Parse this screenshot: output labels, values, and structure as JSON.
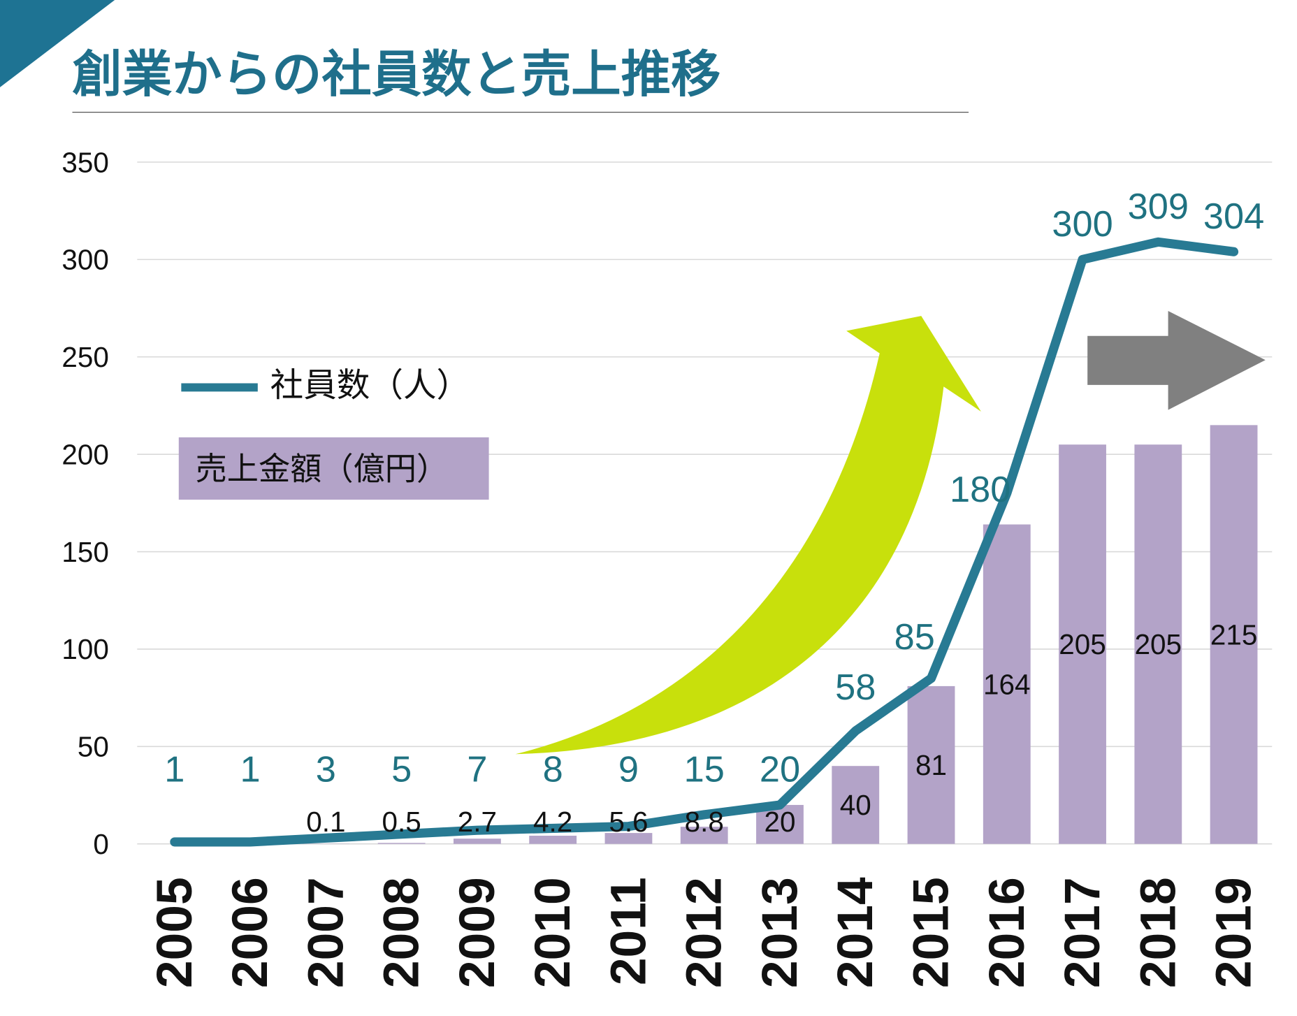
{
  "title": "創業からの社員数と売上推移",
  "colors": {
    "title": "#1f6f8b",
    "corner": "#1e7393",
    "line": "#287a93",
    "line_label": "#1f7281",
    "bar": "#b3a3c8",
    "grid": "#d9d9d9",
    "growth_arrow": "#c8e00c",
    "flat_arrow": "#808080"
  },
  "decorations": {
    "growth_arrow": "curved-up-arrow",
    "flat_arrow": "right-arrow"
  },
  "chart_data": {
    "type": "bar+line",
    "categories": [
      "2005",
      "2006",
      "2007",
      "2008",
      "2009",
      "2010",
      "2011",
      "2012",
      "2013",
      "2014",
      "2015",
      "2016",
      "2017",
      "2018",
      "2019"
    ],
    "ylim": [
      0,
      350
    ],
    "yticks": [
      0,
      50,
      100,
      150,
      200,
      250,
      300,
      350
    ],
    "grid": true,
    "legend_placement": "left",
    "series": [
      {
        "name": "社員数（人）",
        "type": "line",
        "values": [
          1,
          1,
          3,
          5,
          7,
          8,
          9,
          15,
          20,
          58,
          85,
          180,
          300,
          309,
          304
        ]
      },
      {
        "name": "売上金額（億円）",
        "type": "bar",
        "values": [
          null,
          null,
          0.1,
          0.5,
          2.7,
          4.2,
          5.6,
          8.8,
          20,
          40,
          81,
          164,
          205,
          205,
          215
        ]
      }
    ]
  }
}
